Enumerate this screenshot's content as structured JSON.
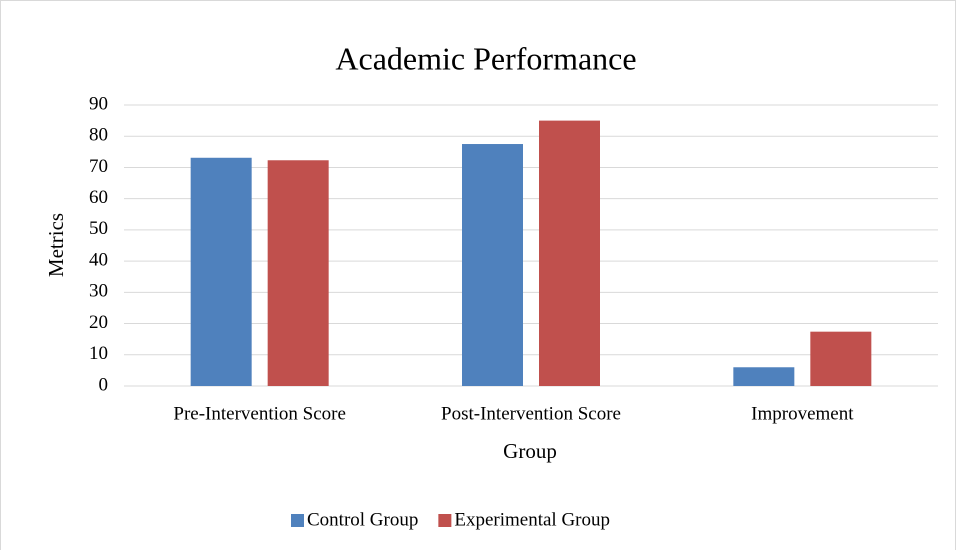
{
  "chart_data": {
    "type": "bar",
    "title": "Academic Performance",
    "x_label": "Group",
    "y_label": "Metrics",
    "categories": [
      "Pre-Intervention Score",
      "Post-Intervention Score",
      "Improvement"
    ],
    "series": [
      {
        "name": "Control Group",
        "color": "#4f81bd",
        "values": [
          73.1,
          77.5,
          6
        ]
      },
      {
        "name": "Experimental Group",
        "color": "#c0504d",
        "values": [
          72.3,
          85,
          17.4
        ]
      }
    ],
    "ylim": [
      0,
      90
    ],
    "yticks": [
      0,
      10,
      20,
      30,
      40,
      50,
      60,
      70,
      80,
      90
    ],
    "grid": true,
    "legend": "bottom"
  }
}
